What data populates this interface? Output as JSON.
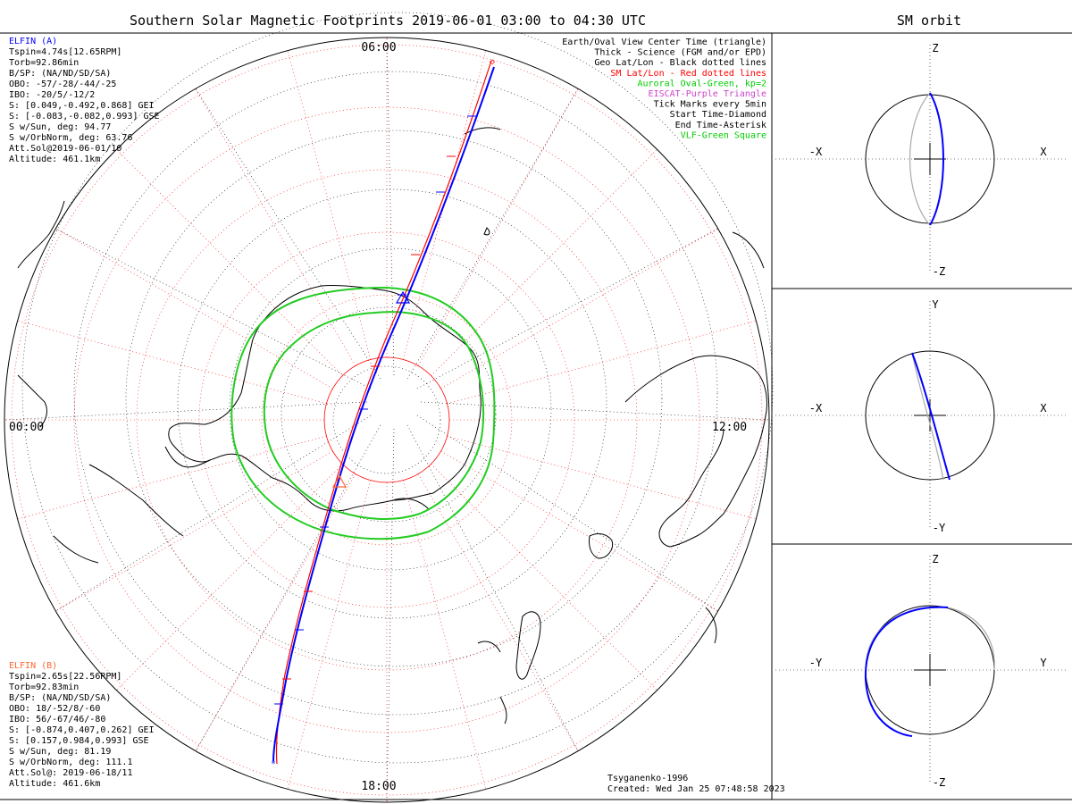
{
  "main": {
    "title": "Southern Solar Magnetic Footprints 2019-06-01 03:00 to 04:30 UTC",
    "hour_labels": {
      "top": "06:00",
      "left": "00:00",
      "right": "12:00",
      "bottom": "18:00"
    }
  },
  "legend": [
    {
      "text": "Earth/Oval View Center Time (triangle)",
      "color": "#000000"
    },
    {
      "text": "Thick - Science (FGM and/or EPD)",
      "color": "#000000"
    },
    {
      "text": "Geo Lat/Lon - Black dotted lines",
      "color": "#000000"
    },
    {
      "text": "SM Lat/Lon - Red dotted lines",
      "color": "#ff0000"
    },
    {
      "text": "Auroral Oval-Green, kp=2",
      "color": "#00cc00"
    },
    {
      "text": "EISCAT-Purple Triangle",
      "color": "#cc44cc"
    },
    {
      "text": "Tick Marks every 5min",
      "color": "#000000"
    },
    {
      "text": "Start Time-Diamond",
      "color": "#000000"
    },
    {
      "text": "End Time-Asterisk",
      "color": "#000000"
    },
    {
      "text": "VLF-Green Square",
      "color": "#00cc00"
    }
  ],
  "elfin_a": {
    "name": "ELFIN (A)",
    "color": "#0000ff",
    "lines": [
      "Tspin=4.74s[12.65RPM]",
      "Torb=92.86min",
      "B/SP: (NA/ND/SD/SA)",
      "OBO: -57/-28/-44/-25",
      "IBO: -20/5/-12/2",
      "S: [0.049,-0.492,0.868] GEI",
      "S: [-0.083,-0.082,0.993] GSE",
      "S w/Sun, deg: 94.77",
      "S w/OrbNorm, deg: 63.76",
      "Att.Sol@2019-06-01/10",
      "Altitude: 461.1km"
    ]
  },
  "elfin_b": {
    "name": "ELFIN (B)",
    "color": "#ff6633",
    "lines": [
      "Tspin=2.65s[22.56RPM]",
      "Torb=92.83min",
      "B/SP: (NA/ND/SD/SA)",
      "OBO: 18/-52/8/-60",
      "IBO: 56/-67/46/-80",
      "S: [-0.874,0.407,0.262] GEI",
      "S: [0.157,0.984,0.993] GSE",
      "S w/Sun, deg: 81.19",
      "S w/OrbNorm, deg: 111.1",
      "Att.Sol@: 2019-06-18/11",
      "Altitude: 461.6km"
    ]
  },
  "footer": {
    "model": "Tsyganenko-1996",
    "created": "Created: Wed Jan 25 07:48:58 2023"
  },
  "sm_orbit": {
    "title": "SM orbit",
    "panels": [
      {
        "top": "Z",
        "bottom": "-Z",
        "left": "-X",
        "right": "X"
      },
      {
        "top": "Y",
        "bottom": "-Y",
        "left": "-X",
        "right": "X"
      },
      {
        "top": "Z",
        "bottom": "-Z",
        "left": "-Y",
        "right": "Y"
      }
    ]
  },
  "colors": {
    "track_a": "#0000ff",
    "track_b": "#ff0000",
    "oval": "#22cc22",
    "sm_grid": "#ff0000",
    "geo_grid": "#000000",
    "orbit_gray": "#aaaaaa"
  }
}
